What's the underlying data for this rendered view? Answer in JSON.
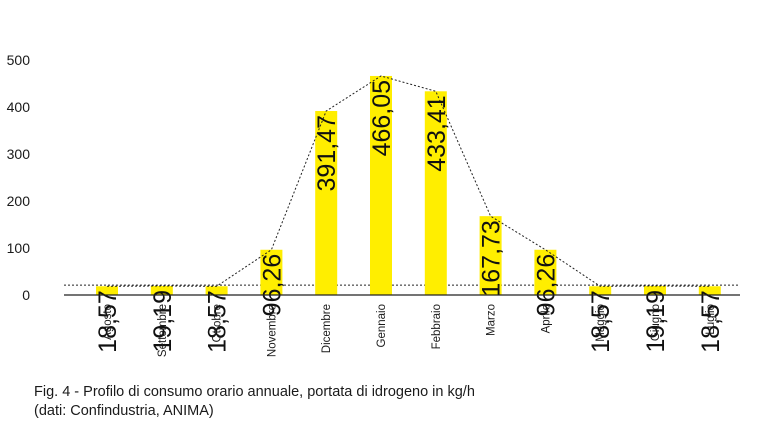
{
  "chart_data": {
    "type": "bar",
    "categories": [
      "Agosto",
      "Settembre",
      "Ottobre",
      "Novembre",
      "Dicembre",
      "Gennaio",
      "Febbraio",
      "Marzo",
      "Aprile",
      "Maggio",
      "Giugno",
      "Luglio"
    ],
    "values": [
      18.57,
      19.19,
      18.57,
      96.26,
      391.47,
      466.05,
      433.41,
      167.73,
      96.26,
      18.57,
      19.19,
      18.57
    ],
    "data_labels": [
      "18,57",
      "19,19",
      "18,57",
      "96,26",
      "391,47",
      "466,05",
      "433,41",
      "167,73",
      "96,26",
      "18,57",
      "19,19",
      "18,57"
    ],
    "y_ticks": [
      0,
      100,
      200,
      300,
      400,
      500
    ],
    "ylim": [
      0,
      500
    ],
    "threshold_line": 21,
    "bar_color": "#ffee00",
    "trend_line": "dotted",
    "grid": false
  },
  "caption": {
    "line1": "Fig. 4 - Profilo di consumo orario annuale, portata di idrogeno in kg/h",
    "line2": "(dati: Confindustria, ANIMA)"
  }
}
